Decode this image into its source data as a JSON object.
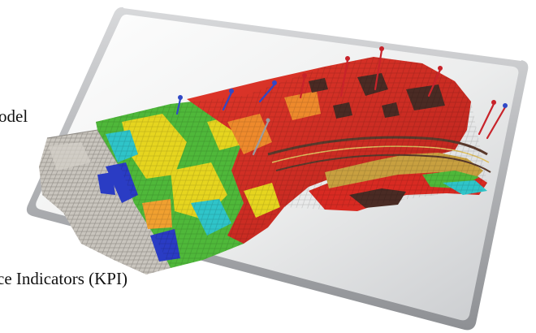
{
  "caption": {
    "model_fragment": "odel",
    "kpi_fragment": "ce Indicators (KPI)"
  },
  "colors": {
    "frame_light": "#f4f4f5",
    "frame_shadow": "#9a9ca0",
    "grid_gray": "#bdb9b2",
    "model_red": "#d82a22",
    "model_dark": "#4a2b24",
    "model_green": "#4fb83a",
    "model_yellow": "#e6d51f",
    "model_cyan": "#2fc4c9",
    "model_blue": "#2a3cc4",
    "well_red": "#c8232a",
    "well_blue": "#3048c6"
  }
}
